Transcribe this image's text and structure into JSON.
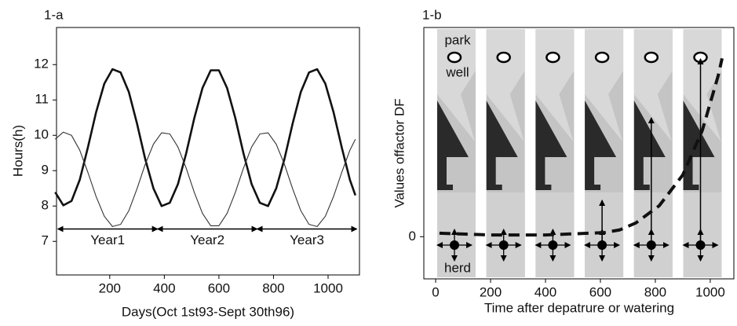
{
  "chart_data": [
    {
      "type": "line",
      "title": "1-a",
      "x_label": "Days(Oct 1st93-Sept 30th96)",
      "y_label": "Hours(h)",
      "x": [
        0,
        30,
        60,
        90,
        120,
        150,
        180,
        210,
        240,
        270,
        300,
        330,
        360,
        390,
        420,
        450,
        480,
        510,
        540,
        570,
        600,
        630,
        660,
        690,
        720,
        750,
        780,
        810,
        840,
        870,
        900,
        930,
        960,
        990,
        1020,
        1050,
        1080,
        1100
      ],
      "series": [
        {
          "color": "#111111",
          "width": 2.6,
          "values": [
            8.39,
            8.02,
            8.14,
            8.74,
            9.66,
            10.65,
            11.46,
            11.87,
            11.78,
            11.22,
            10.33,
            9.33,
            8.5,
            8.0,
            8.09,
            8.62,
            9.49,
            10.49,
            11.34,
            11.84,
            11.84,
            11.34,
            10.49,
            9.49,
            8.62,
            8.09,
            8.0,
            8.5,
            9.33,
            10.33,
            11.22,
            11.78,
            11.87,
            11.46,
            10.65,
            9.66,
            8.74,
            8.3
          ]
        },
        {
          "color": "#333333",
          "width": 1.1,
          "values": [
            9.89,
            10.09,
            10.0,
            9.58,
            8.95,
            8.27,
            7.71,
            7.42,
            7.48,
            7.87,
            8.49,
            9.18,
            9.75,
            10.07,
            10.04,
            9.67,
            9.07,
            8.38,
            7.79,
            7.44,
            7.44,
            7.79,
            8.38,
            9.07,
            9.67,
            10.04,
            10.07,
            9.75,
            9.18,
            8.49,
            7.87,
            7.48,
            7.42,
            7.71,
            8.27,
            8.95,
            9.58,
            9.89
          ]
        }
      ],
      "year_spans": [
        {
          "label": "Year1",
          "start": 10,
          "end": 375,
          "y": 7.35
        },
        {
          "label": "Year2",
          "start": 375,
          "end": 740,
          "y": 7.35
        },
        {
          "label": "Year3",
          "start": 740,
          "end": 1105,
          "y": 7.35
        }
      ],
      "xlim": [
        5,
        1115
      ],
      "ylim": [
        6.05,
        13.05
      ],
      "xticks": [
        200,
        400,
        600,
        800,
        1000
      ],
      "yticks": [
        7,
        8,
        9,
        10,
        11,
        12
      ]
    },
    {
      "type": "panels",
      "title": "1-b",
      "x_label": "Time after depatrure or watering",
      "y_label": "Values offactor DF",
      "labels": [
        "park",
        "well",
        "herd"
      ],
      "x": [
        14,
        200,
        400,
        614,
        671,
        729,
        814,
        900,
        971,
        1029,
        1043
      ],
      "series": [
        {
          "color": "#111111",
          "dashed": true,
          "width": 4,
          "values": [
            0.1,
            0.05,
            0.05,
            0.12,
            0.2,
            0.4,
            0.9,
            1.8,
            3.1,
            4.7,
            5.2
          ]
        }
      ],
      "xlim": [
        -43,
        1086
      ],
      "ylim": [
        -1.23,
        6.1
      ],
      "xticks": [
        0,
        200,
        400,
        600,
        800,
        1000
      ],
      "yticks": [
        0
      ]
    }
  ]
}
